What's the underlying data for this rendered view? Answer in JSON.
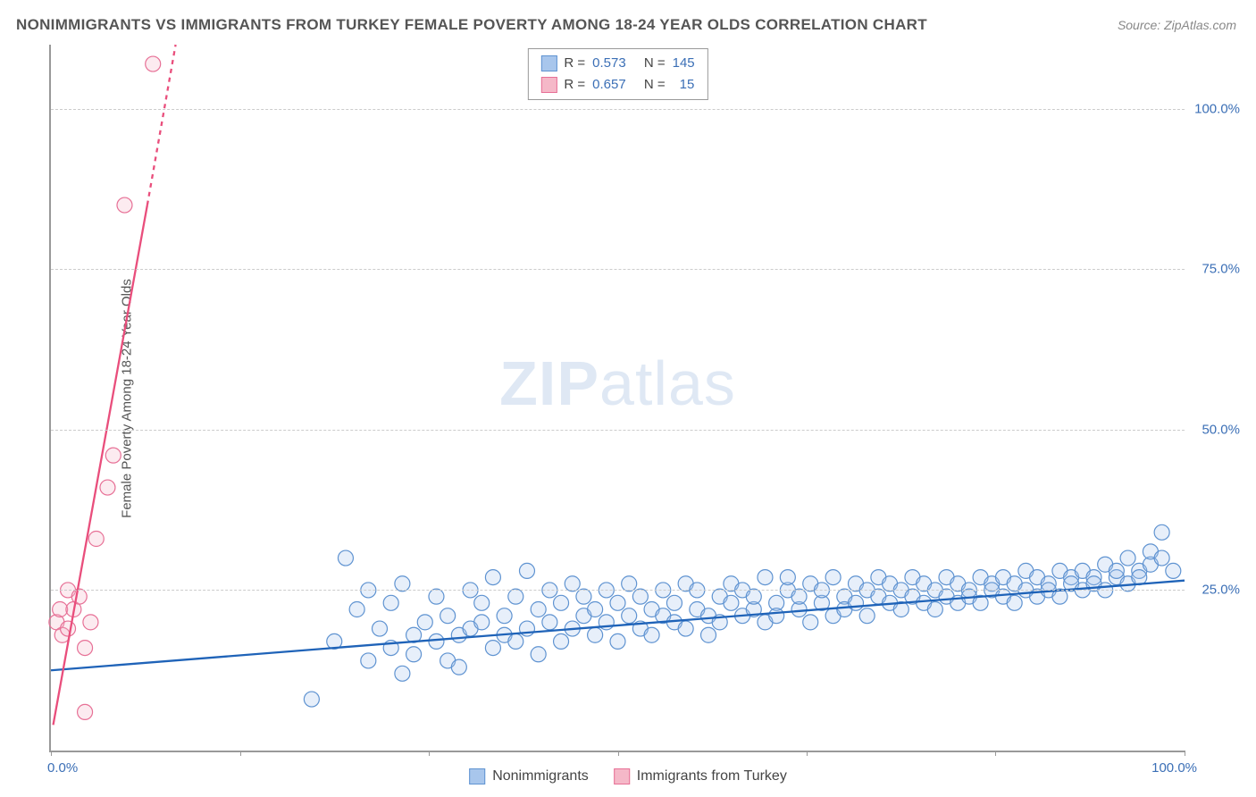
{
  "header": {
    "title": "NONIMMIGRANTS VS IMMIGRANTS FROM TURKEY FEMALE POVERTY AMONG 18-24 YEAR OLDS CORRELATION CHART",
    "title_fontsize": 17,
    "title_color": "#555555",
    "source_label": "Source: ZipAtlas.com",
    "source_color": "#888888"
  },
  "chart": {
    "type": "scatter",
    "background_color": "#ffffff",
    "axis_color": "#999999",
    "grid_color": "#cccccc",
    "ylabel": "Female Poverty Among 18-24 Year Olds",
    "ylabel_fontsize": 15,
    "xlim": [
      0,
      100
    ],
    "ylim": [
      0,
      110
    ],
    "y_ticks": [
      25,
      50,
      75,
      100
    ],
    "y_tick_labels": [
      "25.0%",
      "50.0%",
      "75.0%",
      "100.0%"
    ],
    "x_tick_positions": [
      0,
      16.67,
      33.33,
      50,
      66.67,
      83.33,
      100
    ],
    "x_tick_labels_left": "0.0%",
    "x_tick_labels_right": "100.0%",
    "tick_label_color": "#3b6fb6",
    "marker_radius": 8.5,
    "marker_stroke_width": 1.2,
    "marker_fill_opacity": 0.28,
    "trend_line_width": 2.3,
    "watermark": {
      "zip": "ZIP",
      "atlas": "atlas"
    }
  },
  "legend_top": {
    "rows": [
      {
        "swatch_fill": "#a8c6ec",
        "swatch_border": "#5f93d1",
        "r_label": "R =",
        "r_value": "0.573",
        "n_label": "N =",
        "n_value": "145"
      },
      {
        "swatch_fill": "#f5b8c8",
        "swatch_border": "#e77096",
        "r_label": "R =",
        "r_value": "0.657",
        "n_label": "N =",
        "n_value": "15"
      }
    ]
  },
  "legend_bottom": {
    "items": [
      {
        "swatch_fill": "#a8c6ec",
        "swatch_border": "#5f93d1",
        "label": "Nonimmigrants"
      },
      {
        "swatch_fill": "#f5b8c8",
        "swatch_border": "#e77096",
        "label": "Immigrants from Turkey"
      }
    ]
  },
  "series": {
    "blue": {
      "fill": "#a8c6ec",
      "stroke": "#5f93d1",
      "line_color": "#1f63b8",
      "trend": {
        "x1": 0,
        "y1": 12.5,
        "x2": 100,
        "y2": 26.5
      },
      "points": [
        [
          23,
          8
        ],
        [
          25,
          17
        ],
        [
          26,
          30
        ],
        [
          27,
          22
        ],
        [
          28,
          14
        ],
        [
          28,
          25
        ],
        [
          29,
          19
        ],
        [
          30,
          16
        ],
        [
          30,
          23
        ],
        [
          31,
          12
        ],
        [
          31,
          26
        ],
        [
          32,
          18
        ],
        [
          32,
          15
        ],
        [
          33,
          20
        ],
        [
          34,
          17
        ],
        [
          34,
          24
        ],
        [
          35,
          21
        ],
        [
          35,
          14
        ],
        [
          36,
          18
        ],
        [
          36,
          13
        ],
        [
          37,
          25
        ],
        [
          37,
          19
        ],
        [
          38,
          20
        ],
        [
          38,
          23
        ],
        [
          39,
          16
        ],
        [
          39,
          27
        ],
        [
          40,
          18
        ],
        [
          40,
          21
        ],
        [
          41,
          24
        ],
        [
          41,
          17
        ],
        [
          42,
          28
        ],
        [
          42,
          19
        ],
        [
          43,
          22
        ],
        [
          43,
          15
        ],
        [
          44,
          25
        ],
        [
          44,
          20
        ],
        [
          45,
          23
        ],
        [
          45,
          17
        ],
        [
          46,
          19
        ],
        [
          46,
          26
        ],
        [
          47,
          21
        ],
        [
          47,
          24
        ],
        [
          48,
          18
        ],
        [
          48,
          22
        ],
        [
          49,
          25
        ],
        [
          49,
          20
        ],
        [
          50,
          17
        ],
        [
          50,
          23
        ],
        [
          51,
          21
        ],
        [
          51,
          26
        ],
        [
          52,
          19
        ],
        [
          52,
          24
        ],
        [
          53,
          22
        ],
        [
          53,
          18
        ],
        [
          54,
          25
        ],
        [
          54,
          21
        ],
        [
          55,
          20
        ],
        [
          55,
          23
        ],
        [
          56,
          26
        ],
        [
          56,
          19
        ],
        [
          57,
          22
        ],
        [
          57,
          25
        ],
        [
          58,
          21
        ],
        [
          58,
          18
        ],
        [
          59,
          24
        ],
        [
          59,
          20
        ],
        [
          60,
          23
        ],
        [
          60,
          26
        ],
        [
          61,
          21
        ],
        [
          61,
          25
        ],
        [
          62,
          22
        ],
        [
          62,
          24
        ],
        [
          63,
          20
        ],
        [
          63,
          27
        ],
        [
          64,
          23
        ],
        [
          64,
          21
        ],
        [
          65,
          25
        ],
        [
          65,
          27
        ],
        [
          66,
          22
        ],
        [
          66,
          24
        ],
        [
          67,
          20
        ],
        [
          67,
          26
        ],
        [
          68,
          23
        ],
        [
          68,
          25
        ],
        [
          69,
          21
        ],
        [
          69,
          27
        ],
        [
          70,
          24
        ],
        [
          70,
          22
        ],
        [
          71,
          26
        ],
        [
          71,
          23
        ],
        [
          72,
          25
        ],
        [
          72,
          21
        ],
        [
          73,
          27
        ],
        [
          73,
          24
        ],
        [
          74,
          23
        ],
        [
          74,
          26
        ],
        [
          75,
          22
        ],
        [
          75,
          25
        ],
        [
          76,
          24
        ],
        [
          76,
          27
        ],
        [
          77,
          23
        ],
        [
          77,
          26
        ],
        [
          78,
          25
        ],
        [
          78,
          22
        ],
        [
          79,
          24
        ],
        [
          79,
          27
        ],
        [
          80,
          23
        ],
        [
          80,
          26
        ],
        [
          81,
          25
        ],
        [
          81,
          24
        ],
        [
          82,
          27
        ],
        [
          82,
          23
        ],
        [
          83,
          26
        ],
        [
          83,
          25
        ],
        [
          84,
          24
        ],
        [
          84,
          27
        ],
        [
          85,
          23
        ],
        [
          85,
          26
        ],
        [
          86,
          25
        ],
        [
          86,
          28
        ],
        [
          87,
          24
        ],
        [
          87,
          27
        ],
        [
          88,
          26
        ],
        [
          88,
          25
        ],
        [
          89,
          28
        ],
        [
          89,
          24
        ],
        [
          90,
          27
        ],
        [
          90,
          26
        ],
        [
          91,
          25
        ],
        [
          91,
          28
        ],
        [
          92,
          27
        ],
        [
          92,
          26
        ],
        [
          93,
          25
        ],
        [
          93,
          29
        ],
        [
          94,
          27
        ],
        [
          94,
          28
        ],
        [
          95,
          26
        ],
        [
          95,
          30
        ],
        [
          96,
          28
        ],
        [
          96,
          27
        ],
        [
          97,
          29
        ],
        [
          97,
          31
        ],
        [
          98,
          30
        ],
        [
          98,
          34
        ],
        [
          99,
          28
        ]
      ]
    },
    "pink": {
      "fill": "#f5b8c8",
      "stroke": "#e77096",
      "line_color": "#e94e7c",
      "trend_solid": {
        "x1": 0.2,
        "y1": 4,
        "x2": 8.5,
        "y2": 85
      },
      "trend_dashed": {
        "x1": 8.5,
        "y1": 85,
        "x2": 11,
        "y2": 110
      },
      "points": [
        [
          0.5,
          20
        ],
        [
          0.8,
          22
        ],
        [
          1,
          18
        ],
        [
          1.5,
          25
        ],
        [
          1.5,
          19
        ],
        [
          2,
          22
        ],
        [
          2.5,
          24
        ],
        [
          3,
          16
        ],
        [
          3.5,
          20
        ],
        [
          4,
          33
        ],
        [
          5,
          41
        ],
        [
          5.5,
          46
        ],
        [
          6.5,
          85
        ],
        [
          9,
          107
        ],
        [
          3,
          6
        ]
      ]
    }
  }
}
